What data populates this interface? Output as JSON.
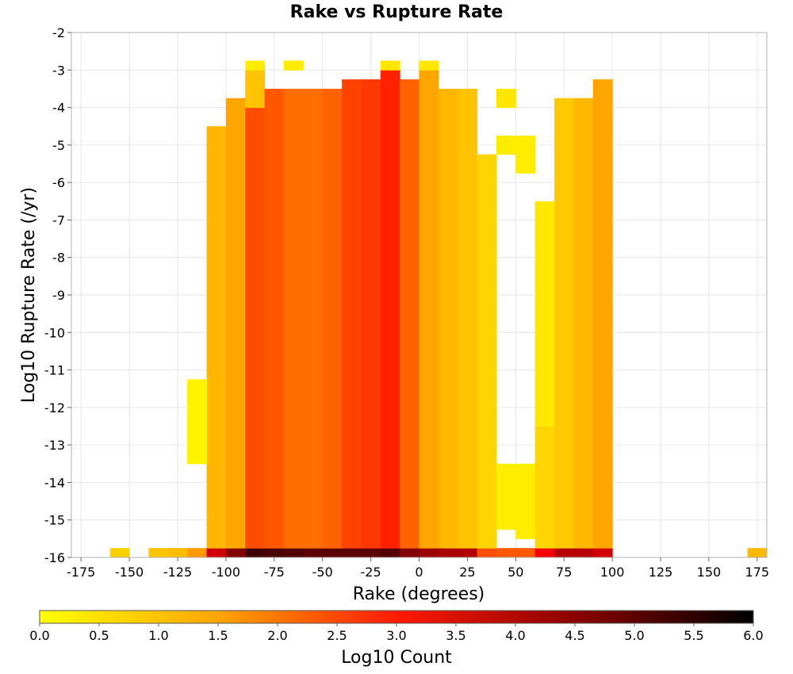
{
  "chart_data": {
    "type": "heatmap",
    "title": "Rake vs Rupture Rate",
    "xlabel": "Rake (degrees)",
    "ylabel": "Log10 Rupture Rate (/yr)",
    "xlim": [
      -180,
      180
    ],
    "ylim": [
      -16,
      -2
    ],
    "x_ticks": [
      -175,
      -150,
      -125,
      -100,
      -75,
      -50,
      -25,
      0,
      25,
      50,
      75,
      100,
      125,
      150,
      175
    ],
    "y_ticks": [
      -2,
      -3,
      -4,
      -5,
      -6,
      -7,
      -8,
      -9,
      -10,
      -11,
      -12,
      -13,
      -14,
      -15,
      -16
    ],
    "grid": true,
    "bin_width_x": 10,
    "bin_height_y": 0.25,
    "colorbar": {
      "label": "Log10 Count",
      "range": [
        0,
        6
      ],
      "ticks": [
        "0.0",
        "0.5",
        "1.0",
        "1.5",
        "2.0",
        "2.5",
        "3.0",
        "3.5",
        "4.0",
        "4.5",
        "5.0",
        "5.5",
        "6.0"
      ],
      "colors": [
        "#ffff00",
        "#ffa500",
        "#ff0000",
        "#8b0000",
        "#000000"
      ]
    },
    "bins": [
      {
        "x": -155,
        "y_min": -16.0,
        "y_max": -15.75,
        "log10_count": 0.8
      },
      {
        "x": -135,
        "y_min": -16.0,
        "y_max": -15.75,
        "log10_count": 1.0
      },
      {
        "x": -125,
        "y_min": -16.0,
        "y_max": -15.75,
        "log10_count": 1.1
      },
      {
        "x": -115,
        "y_min": -16.0,
        "y_max": -15.75,
        "log10_count": 1.6
      },
      {
        "x": -105,
        "y_min": -16.0,
        "y_max": -15.75,
        "log10_count": 3.6
      },
      {
        "x": -95,
        "y_min": -16.0,
        "y_max": -15.75,
        "log10_count": 4.6
      },
      {
        "x": -85,
        "y_min": -16.0,
        "y_max": -15.75,
        "log10_count": 5.3
      },
      {
        "x": -75,
        "y_min": -16.0,
        "y_max": -15.75,
        "log10_count": 5.2
      },
      {
        "x": -65,
        "y_min": -16.0,
        "y_max": -15.75,
        "log10_count": 5.1
      },
      {
        "x": -55,
        "y_min": -16.0,
        "y_max": -15.75,
        "log10_count": 5.0
      },
      {
        "x": -45,
        "y_min": -16.0,
        "y_max": -15.75,
        "log10_count": 5.0
      },
      {
        "x": -35,
        "y_min": -16.0,
        "y_max": -15.75,
        "log10_count": 5.0
      },
      {
        "x": -25,
        "y_min": -16.0,
        "y_max": -15.75,
        "log10_count": 5.0
      },
      {
        "x": -15,
        "y_min": -16.0,
        "y_max": -15.75,
        "log10_count": 5.1
      },
      {
        "x": -5,
        "y_min": -16.0,
        "y_max": -15.75,
        "log10_count": 4.6
      },
      {
        "x": 5,
        "y_min": -16.0,
        "y_max": -15.75,
        "log10_count": 4.3
      },
      {
        "x": 15,
        "y_min": -16.0,
        "y_max": -15.75,
        "log10_count": 4.1
      },
      {
        "x": 25,
        "y_min": -16.0,
        "y_max": -15.75,
        "log10_count": 4.0
      },
      {
        "x": 35,
        "y_min": -16.0,
        "y_max": -15.75,
        "log10_count": 2.3
      },
      {
        "x": 45,
        "y_min": -16.0,
        "y_max": -15.75,
        "log10_count": 2.2
      },
      {
        "x": 55,
        "y_min": -16.0,
        "y_max": -15.75,
        "log10_count": 2.2
      },
      {
        "x": 65,
        "y_min": -16.0,
        "y_max": -15.75,
        "log10_count": 3.1
      },
      {
        "x": 75,
        "y_min": -16.0,
        "y_max": -15.75,
        "log10_count": 3.9
      },
      {
        "x": 85,
        "y_min": -16.0,
        "y_max": -15.75,
        "log10_count": 3.9
      },
      {
        "x": 95,
        "y_min": -16.0,
        "y_max": -15.75,
        "log10_count": 3.6
      },
      {
        "x": 175,
        "y_min": -16.0,
        "y_max": -15.75,
        "log10_count": 1.2
      },
      {
        "x": -105,
        "y_min": -15.75,
        "y_max": -4.5,
        "log10_count": 1.2
      },
      {
        "x": -95,
        "y_min": -15.75,
        "y_max": -3.75,
        "log10_count": 1.5
      },
      {
        "x": -85,
        "y_min": -15.75,
        "y_max": -4.0,
        "log10_count": 2.3
      },
      {
        "x": -85,
        "y_min": -4.0,
        "y_max": -3.0,
        "log10_count": 1.0
      },
      {
        "x": -85,
        "y_min": -3.0,
        "y_max": -2.75,
        "log10_count": 0.3
      },
      {
        "x": -75,
        "y_min": -15.75,
        "y_max": -3.5,
        "log10_count": 2.2
      },
      {
        "x": -65,
        "y_min": -15.75,
        "y_max": -3.5,
        "log10_count": 2.0
      },
      {
        "x": -65,
        "y_min": -3.0,
        "y_max": -2.75,
        "log10_count": 0.3
      },
      {
        "x": -55,
        "y_min": -15.75,
        "y_max": -3.5,
        "log10_count": 2.0
      },
      {
        "x": -45,
        "y_min": -15.75,
        "y_max": -3.5,
        "log10_count": 2.1
      },
      {
        "x": -35,
        "y_min": -15.75,
        "y_max": -3.25,
        "log10_count": 2.4
      },
      {
        "x": -25,
        "y_min": -15.75,
        "y_max": -3.25,
        "log10_count": 2.5
      },
      {
        "x": -15,
        "y_min": -15.75,
        "y_max": -3.0,
        "log10_count": 2.7
      },
      {
        "x": -15,
        "y_min": -3.0,
        "y_max": -2.75,
        "log10_count": 0.4
      },
      {
        "x": -5,
        "y_min": -15.75,
        "y_max": -3.25,
        "log10_count": 2.1
      },
      {
        "x": 5,
        "y_min": -15.75,
        "y_max": -3.0,
        "log10_count": 1.5
      },
      {
        "x": 5,
        "y_min": -3.0,
        "y_max": -2.75,
        "log10_count": 0.4
      },
      {
        "x": 15,
        "y_min": -15.75,
        "y_max": -3.5,
        "log10_count": 1.2
      },
      {
        "x": 25,
        "y_min": -15.75,
        "y_max": -3.5,
        "log10_count": 1.0
      },
      {
        "x": 35,
        "y_min": -15.75,
        "y_max": -5.25,
        "log10_count": 0.7
      },
      {
        "x": 45,
        "y_min": -15.25,
        "y_max": -13.5,
        "log10_count": 0.3
      },
      {
        "x": 45,
        "y_min": -5.25,
        "y_max": -4.75,
        "log10_count": 0.3
      },
      {
        "x": 45,
        "y_min": -4.0,
        "y_max": -3.5,
        "log10_count": 0.4
      },
      {
        "x": 55,
        "y_min": -15.5,
        "y_max": -13.5,
        "log10_count": 0.3
      },
      {
        "x": 55,
        "y_min": -5.75,
        "y_max": -4.75,
        "log10_count": 0.3
      },
      {
        "x": 65,
        "y_min": -15.75,
        "y_max": -12.5,
        "log10_count": 0.7
      },
      {
        "x": 65,
        "y_min": -12.5,
        "y_max": -6.5,
        "log10_count": 0.4
      },
      {
        "x": 75,
        "y_min": -15.75,
        "y_max": -3.75,
        "log10_count": 0.9
      },
      {
        "x": 85,
        "y_min": -15.75,
        "y_max": -3.75,
        "log10_count": 1.2
      },
      {
        "x": 95,
        "y_min": -15.75,
        "y_max": -3.25,
        "log10_count": 1.5
      },
      {
        "x": -115,
        "y_min": -13.5,
        "y_max": -11.25,
        "log10_count": 0.2
      }
    ]
  }
}
